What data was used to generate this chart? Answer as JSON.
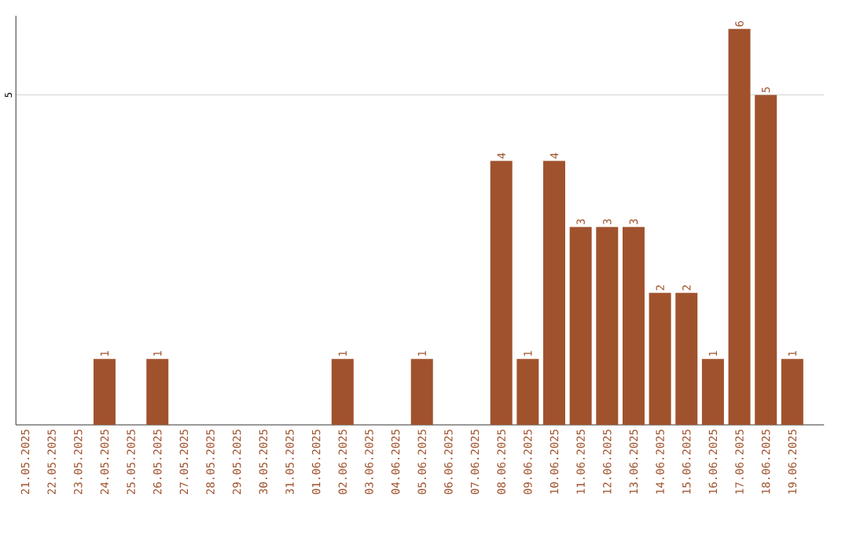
{
  "chart_data": {
    "type": "bar",
    "categories": [
      "21.05.2025",
      "22.05.2025",
      "23.05.2025",
      "24.05.2025",
      "25.05.2025",
      "26.05.2025",
      "27.05.2025",
      "28.05.2025",
      "29.05.2025",
      "30.05.2025",
      "31.05.2025",
      "01.06.2025",
      "02.06.2025",
      "03.06.2025",
      "04.06.2025",
      "05.06.2025",
      "06.06.2025",
      "07.06.2025",
      "08.06.2025",
      "09.06.2025",
      "10.06.2025",
      "11.06.2025",
      "12.06.2025",
      "13.06.2025",
      "14.06.2025",
      "15.06.2025",
      "16.06.2025",
      "17.06.2025",
      "18.06.2025",
      "19.06.2025"
    ],
    "values": [
      0,
      0,
      0,
      1,
      0,
      1,
      0,
      0,
      0,
      0,
      0,
      0,
      1,
      0,
      0,
      1,
      0,
      0,
      4,
      1,
      4,
      3,
      3,
      3,
      2,
      2,
      1,
      6,
      5,
      1
    ],
    "value_labels": [
      null,
      null,
      null,
      "1",
      null,
      "1",
      null,
      null,
      null,
      null,
      null,
      null,
      "1",
      null,
      null,
      "1",
      null,
      null,
      "4",
      "1",
      "4",
      "3",
      "3",
      "3",
      "2",
      "2",
      "1",
      "6",
      "5",
      "1"
    ],
    "color": "#a0522d",
    "ylim": [
      0,
      6.2
    ],
    "yticks": [
      5
    ],
    "grid": "y"
  }
}
